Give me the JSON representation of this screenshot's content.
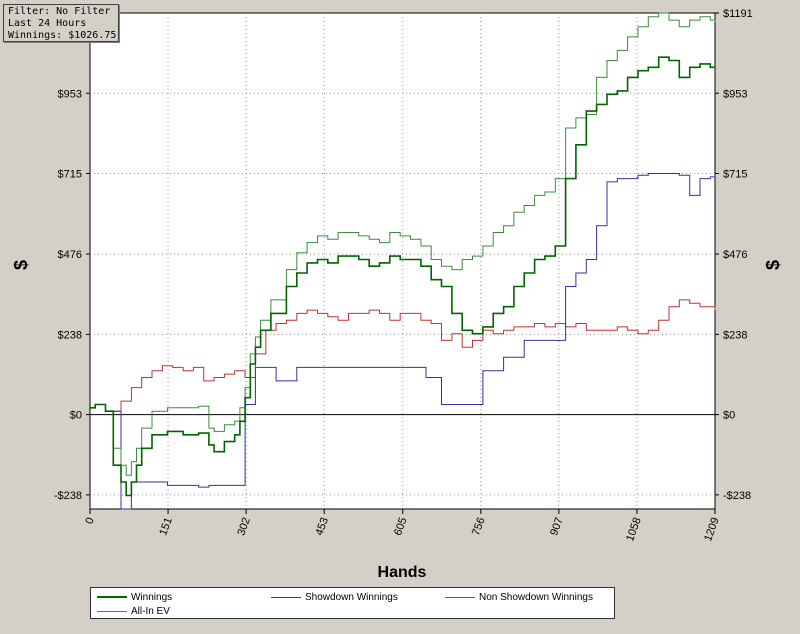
{
  "info_box": {
    "filter": "Filter: No Filter",
    "period": "Last 24 Hours",
    "winnings": "Winnings: $1026.75"
  },
  "colors": {
    "winnings": "#006400",
    "all_in_ev": "#3c8c3c",
    "showdown": "#3232a0",
    "non_showdown": "#c03232",
    "zero_line": "#000000",
    "grid": "#909090"
  },
  "chart_data": {
    "type": "line",
    "title": "",
    "xlabel": "Hands",
    "ylabel": "$",
    "xlim": [
      0,
      1209
    ],
    "ylim": [
      -280,
      1191
    ],
    "x_ticks": [
      0,
      151,
      302,
      453,
      605,
      756,
      907,
      1058,
      1209
    ],
    "y_ticks": [
      -238,
      0,
      238,
      476,
      715,
      953,
      1191
    ],
    "y_tick_labels": [
      "-$238",
      "$0",
      "$238",
      "$476",
      "$715",
      "$953",
      "$1191"
    ],
    "grid": true,
    "legend_position": "bottom",
    "series": [
      {
        "name": "Winnings",
        "key": "winnings",
        "x": [
          0,
          10,
          30,
          45,
          60,
          70,
          80,
          90,
          100,
          120,
          150,
          180,
          210,
          230,
          240,
          260,
          280,
          290,
          300,
          310,
          320,
          330,
          350,
          380,
          400,
          420,
          440,
          460,
          480,
          500,
          520,
          540,
          560,
          580,
          600,
          620,
          640,
          660,
          680,
          700,
          720,
          740,
          760,
          780,
          800,
          820,
          840,
          860,
          880,
          900,
          920,
          940,
          960,
          980,
          1000,
          1020,
          1040,
          1060,
          1080,
          1100,
          1120,
          1140,
          1160,
          1180,
          1200,
          1209
        ],
        "y": [
          20,
          30,
          10,
          -150,
          -200,
          -240,
          -200,
          -150,
          -100,
          -60,
          -50,
          -60,
          -55,
          -90,
          -110,
          -80,
          -60,
          -20,
          50,
          150,
          200,
          250,
          300,
          380,
          420,
          450,
          460,
          450,
          470,
          470,
          460,
          440,
          450,
          470,
          460,
          460,
          440,
          400,
          380,
          300,
          250,
          240,
          260,
          300,
          320,
          380,
          420,
          460,
          470,
          500,
          700,
          800,
          900,
          920,
          950,
          960,
          1000,
          1020,
          1030,
          1060,
          1050,
          1000,
          1030,
          1040,
          1030,
          1030
        ]
      },
      {
        "name": "All-In EV",
        "key": "all_in_ev",
        "x": [
          0,
          10,
          30,
          45,
          60,
          70,
          80,
          90,
          100,
          120,
          150,
          180,
          210,
          230,
          240,
          260,
          280,
          290,
          300,
          310,
          320,
          330,
          350,
          380,
          400,
          420,
          440,
          460,
          480,
          500,
          520,
          540,
          560,
          580,
          600,
          620,
          640,
          660,
          680,
          700,
          720,
          740,
          760,
          780,
          800,
          820,
          840,
          860,
          880,
          900,
          920,
          940,
          960,
          980,
          1000,
          1020,
          1040,
          1060,
          1080,
          1100,
          1120,
          1140,
          1160,
          1180,
          1200,
          1209
        ],
        "y": [
          20,
          30,
          10,
          -100,
          -150,
          -180,
          -140,
          -100,
          -40,
          10,
          20,
          20,
          25,
          -40,
          -50,
          -30,
          -20,
          20,
          80,
          180,
          230,
          280,
          340,
          430,
          480,
          510,
          530,
          520,
          540,
          540,
          530,
          520,
          510,
          540,
          530,
          520,
          500,
          460,
          440,
          430,
          460,
          470,
          500,
          540,
          560,
          600,
          620,
          650,
          660,
          700,
          850,
          880,
          890,
          1000,
          1050,
          1080,
          1120,
          1150,
          1180,
          1191,
          1170,
          1150,
          1170,
          1180,
          1170,
          1165
        ]
      },
      {
        "name": "Showdown Winnings",
        "key": "showdown",
        "x": [
          0,
          10,
          30,
          60,
          70,
          80,
          100,
          150,
          180,
          210,
          230,
          250,
          270,
          290,
          300,
          320,
          340,
          360,
          400,
          450,
          500,
          550,
          600,
          650,
          680,
          700,
          720,
          740,
          760,
          780,
          800,
          820,
          840,
          860,
          880,
          900,
          920,
          940,
          960,
          980,
          1000,
          1020,
          1040,
          1060,
          1080,
          1100,
          1120,
          1140,
          1160,
          1180,
          1200,
          1209
        ],
        "y": [
          20,
          30,
          10,
          -280,
          -280,
          -200,
          -200,
          -210,
          -210,
          -215,
          -210,
          -210,
          -210,
          -210,
          30,
          140,
          140,
          100,
          140,
          140,
          140,
          140,
          140,
          110,
          30,
          30,
          30,
          30,
          130,
          130,
          170,
          170,
          220,
          220,
          220,
          220,
          380,
          420,
          460,
          560,
          690,
          700,
          700,
          710,
          715,
          715,
          715,
          710,
          650,
          700,
          705,
          710
        ]
      },
      {
        "name": "Non Showdown Winnings",
        "key": "non_showdown",
        "x": [
          0,
          10,
          30,
          60,
          80,
          100,
          120,
          140,
          160,
          180,
          200,
          220,
          240,
          260,
          280,
          300,
          320,
          340,
          360,
          380,
          400,
          420,
          440,
          460,
          480,
          500,
          520,
          540,
          560,
          580,
          600,
          620,
          640,
          660,
          680,
          700,
          720,
          740,
          760,
          780,
          800,
          820,
          840,
          860,
          880,
          900,
          920,
          940,
          960,
          980,
          1000,
          1020,
          1040,
          1060,
          1080,
          1100,
          1120,
          1140,
          1160,
          1180,
          1200,
          1209
        ],
        "y": [
          20,
          30,
          10,
          40,
          80,
          110,
          130,
          145,
          140,
          130,
          140,
          100,
          110,
          120,
          130,
          110,
          180,
          250,
          270,
          280,
          300,
          310,
          300,
          290,
          280,
          300,
          300,
          310,
          300,
          280,
          300,
          300,
          280,
          270,
          220,
          240,
          200,
          220,
          250,
          240,
          250,
          260,
          260,
          270,
          260,
          270,
          260,
          270,
          250,
          250,
          250,
          260,
          250,
          240,
          250,
          280,
          320,
          340,
          330,
          320,
          320,
          310
        ]
      }
    ]
  },
  "legend": {
    "items": [
      {
        "label": "Winnings",
        "key": "winnings"
      },
      {
        "label": "Showdown Winnings",
        "key": "showdown"
      },
      {
        "label": "Non Showdown Winnings",
        "key": "non_showdown"
      },
      {
        "label": "All-In EV",
        "key": "all_in_ev"
      }
    ]
  }
}
